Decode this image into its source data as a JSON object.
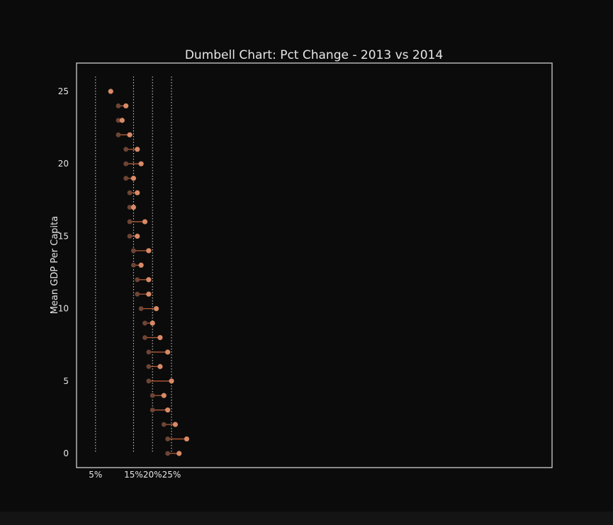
{
  "chart_data": {
    "type": "dumbbell",
    "title": "Dumbell Chart: Pct Change - 2013 vs 2014",
    "xlabel": "",
    "ylabel": "Mean GDP Per Capita",
    "x_ticks": [
      {
        "value": 0.05,
        "label": "5%"
      },
      {
        "value": 0.15,
        "label": "15%"
      },
      {
        "value": 0.2,
        "label": "20%"
      },
      {
        "value": 0.25,
        "label": "25%"
      }
    ],
    "y_ticks": [
      0,
      5,
      10,
      15,
      20,
      25
    ],
    "xlim": [
      0.0,
      0.25
    ],
    "ylim": [
      -1,
      27
    ],
    "grid": "vertical dotted lines at x ticks",
    "colors": {
      "background": "#0b0b0b",
      "axes_frame": "#cfcfcf",
      "gridline": "#d9d9d9",
      "line": "#b35a37",
      "point_2013": "#6e4535",
      "point_2014": "#d98a66",
      "text": "#e6e6e6"
    },
    "series": [
      {
        "y": 0,
        "pct_2013": 0.24,
        "pct_2014": 0.27
      },
      {
        "y": 1,
        "pct_2013": 0.24,
        "pct_2014": 0.29
      },
      {
        "y": 2,
        "pct_2013": 0.23,
        "pct_2014": 0.26
      },
      {
        "y": 3,
        "pct_2013": 0.2,
        "pct_2014": 0.24
      },
      {
        "y": 4,
        "pct_2013": 0.2,
        "pct_2014": 0.23
      },
      {
        "y": 5,
        "pct_2013": 0.19,
        "pct_2014": 0.25
      },
      {
        "y": 6,
        "pct_2013": 0.19,
        "pct_2014": 0.22
      },
      {
        "y": 7,
        "pct_2013": 0.19,
        "pct_2014": 0.24
      },
      {
        "y": 8,
        "pct_2013": 0.18,
        "pct_2014": 0.22
      },
      {
        "y": 9,
        "pct_2013": 0.18,
        "pct_2014": 0.2
      },
      {
        "y": 10,
        "pct_2013": 0.17,
        "pct_2014": 0.21
      },
      {
        "y": 11,
        "pct_2013": 0.16,
        "pct_2014": 0.19
      },
      {
        "y": 12,
        "pct_2013": 0.16,
        "pct_2014": 0.19
      },
      {
        "y": 13,
        "pct_2013": 0.15,
        "pct_2014": 0.17
      },
      {
        "y": 14,
        "pct_2013": 0.15,
        "pct_2014": 0.19
      },
      {
        "y": 15,
        "pct_2013": 0.14,
        "pct_2014": 0.16
      },
      {
        "y": 16,
        "pct_2013": 0.14,
        "pct_2014": 0.18
      },
      {
        "y": 17,
        "pct_2013": 0.14,
        "pct_2014": 0.15
      },
      {
        "y": 18,
        "pct_2013": 0.14,
        "pct_2014": 0.16
      },
      {
        "y": 19,
        "pct_2013": 0.13,
        "pct_2014": 0.15
      },
      {
        "y": 20,
        "pct_2013": 0.13,
        "pct_2014": 0.17
      },
      {
        "y": 21,
        "pct_2013": 0.13,
        "pct_2014": 0.16
      },
      {
        "y": 22,
        "pct_2013": 0.11,
        "pct_2014": 0.14
      },
      {
        "y": 23,
        "pct_2013": 0.11,
        "pct_2014": 0.12
      },
      {
        "y": 24,
        "pct_2013": 0.11,
        "pct_2014": 0.13
      },
      {
        "y": 25,
        "pct_2013": 0.09,
        "pct_2014": 0.09
      }
    ]
  }
}
